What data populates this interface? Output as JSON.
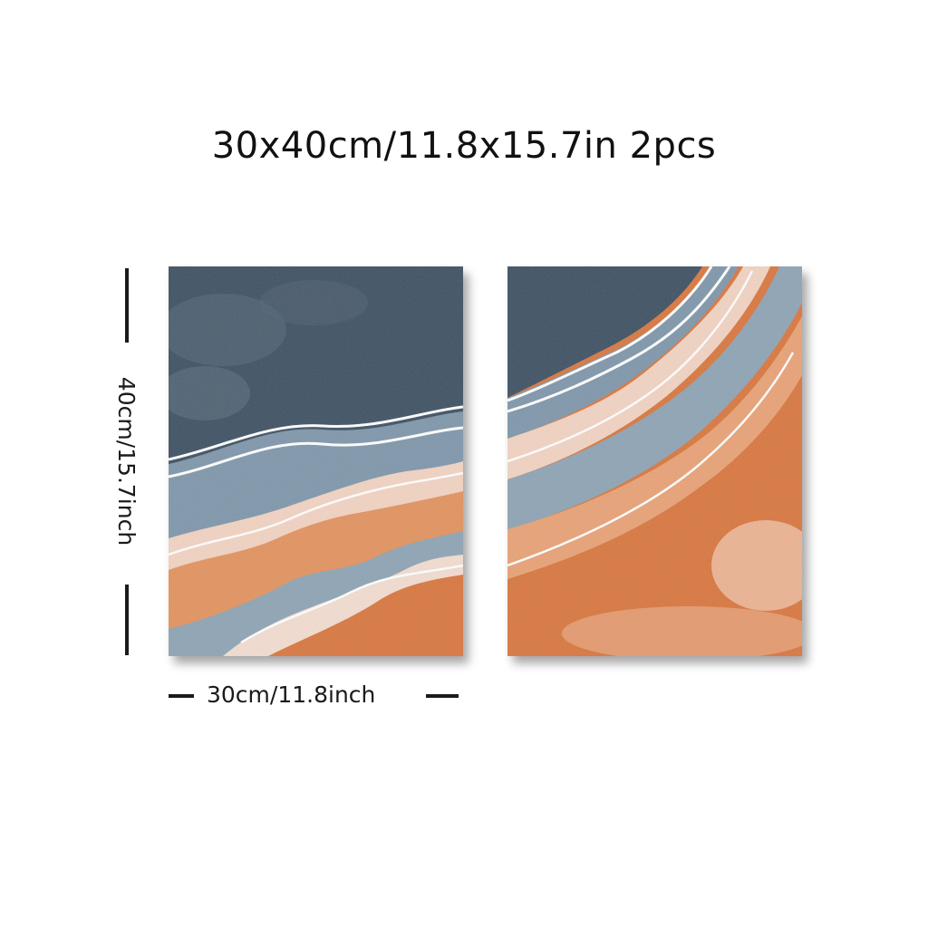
{
  "title": "30x40cm/11.8x15.7in 2pcs",
  "dimensions": {
    "height_label": "40cm/15.7inch",
    "width_label": "30cm/11.8inch"
  },
  "colors": {
    "navy": "#3e5163",
    "slate_blue": "#7f97ab",
    "cream": "#f2d3c2",
    "orange": "#d9773f",
    "light_orange": "#e9a276"
  },
  "panels": [
    "left-abstract-wave-panel",
    "right-abstract-wave-panel"
  ]
}
